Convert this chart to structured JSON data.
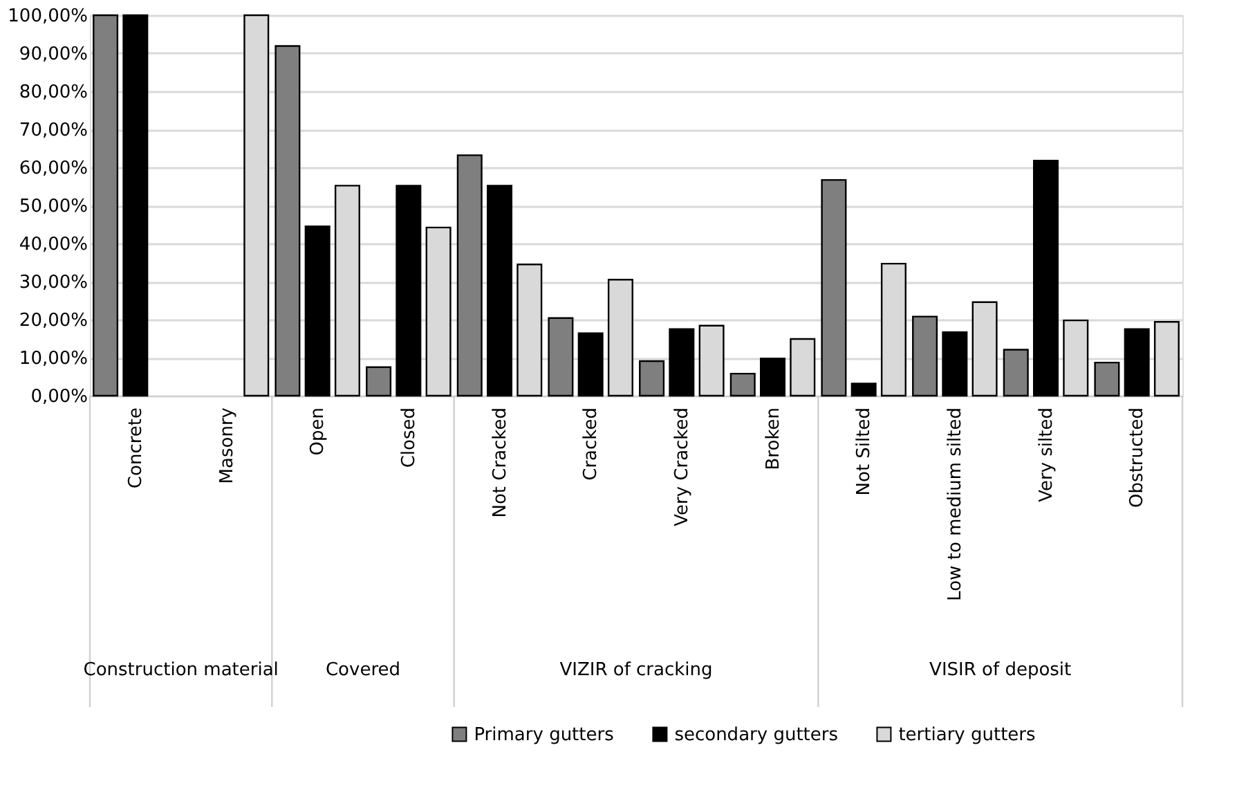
{
  "chart_data": {
    "type": "bar",
    "categories": [
      "Concrete",
      "Masonry",
      "Open",
      "Closed",
      "Not Cracked",
      "Cracked",
      "Very Cracked",
      "Broken",
      "Not Silted",
      "Low to medium silted",
      "Very silted",
      "Obstructed"
    ],
    "series": [
      {
        "name": "Primary gutters",
        "color": "#7f7f7f",
        "values": [
          100,
          null,
          91.9,
          7.5,
          63.2,
          20.4,
          9.1,
          5.8,
          56.7,
          20.8,
          12.1,
          8.7
        ]
      },
      {
        "name": "secondary gutters",
        "color": "#000000",
        "values": [
          100,
          null,
          44.5,
          55.2,
          55.2,
          16.4,
          17.5,
          9.8,
          3.2,
          16.7,
          61.8,
          17.5
        ]
      },
      {
        "name": "tertiary gutters",
        "color": "#d9d9d9",
        "values": [
          null,
          100,
          55.2,
          44.2,
          34.5,
          30.5,
          18.4,
          14.9,
          34.7,
          24.6,
          19.8,
          19.4
        ]
      }
    ],
    "annotations": [
      "Construction material",
      "Covered",
      "VIZIR of cracking",
      "VISIR of deposit"
    ],
    "ylim": [
      0,
      100
    ],
    "yticks": [
      {
        "value": 0,
        "label": "0,00%"
      },
      {
        "value": 10,
        "label": "10,00%"
      },
      {
        "value": 20,
        "label": "20,00%"
      },
      {
        "value": 30,
        "label": "30,00%"
      },
      {
        "value": 40,
        "label": "40,00%"
      },
      {
        "value": 50,
        "label": "50,00%"
      },
      {
        "value": 60,
        "label": "60,00%"
      },
      {
        "value": 70,
        "label": "70,00%"
      },
      {
        "value": 80,
        "label": "80,00%"
      },
      {
        "value": 90,
        "label": "90,00%"
      },
      {
        "value": 100,
        "label": "100,00%"
      }
    ],
    "grid": "y",
    "legend": "bottom"
  }
}
